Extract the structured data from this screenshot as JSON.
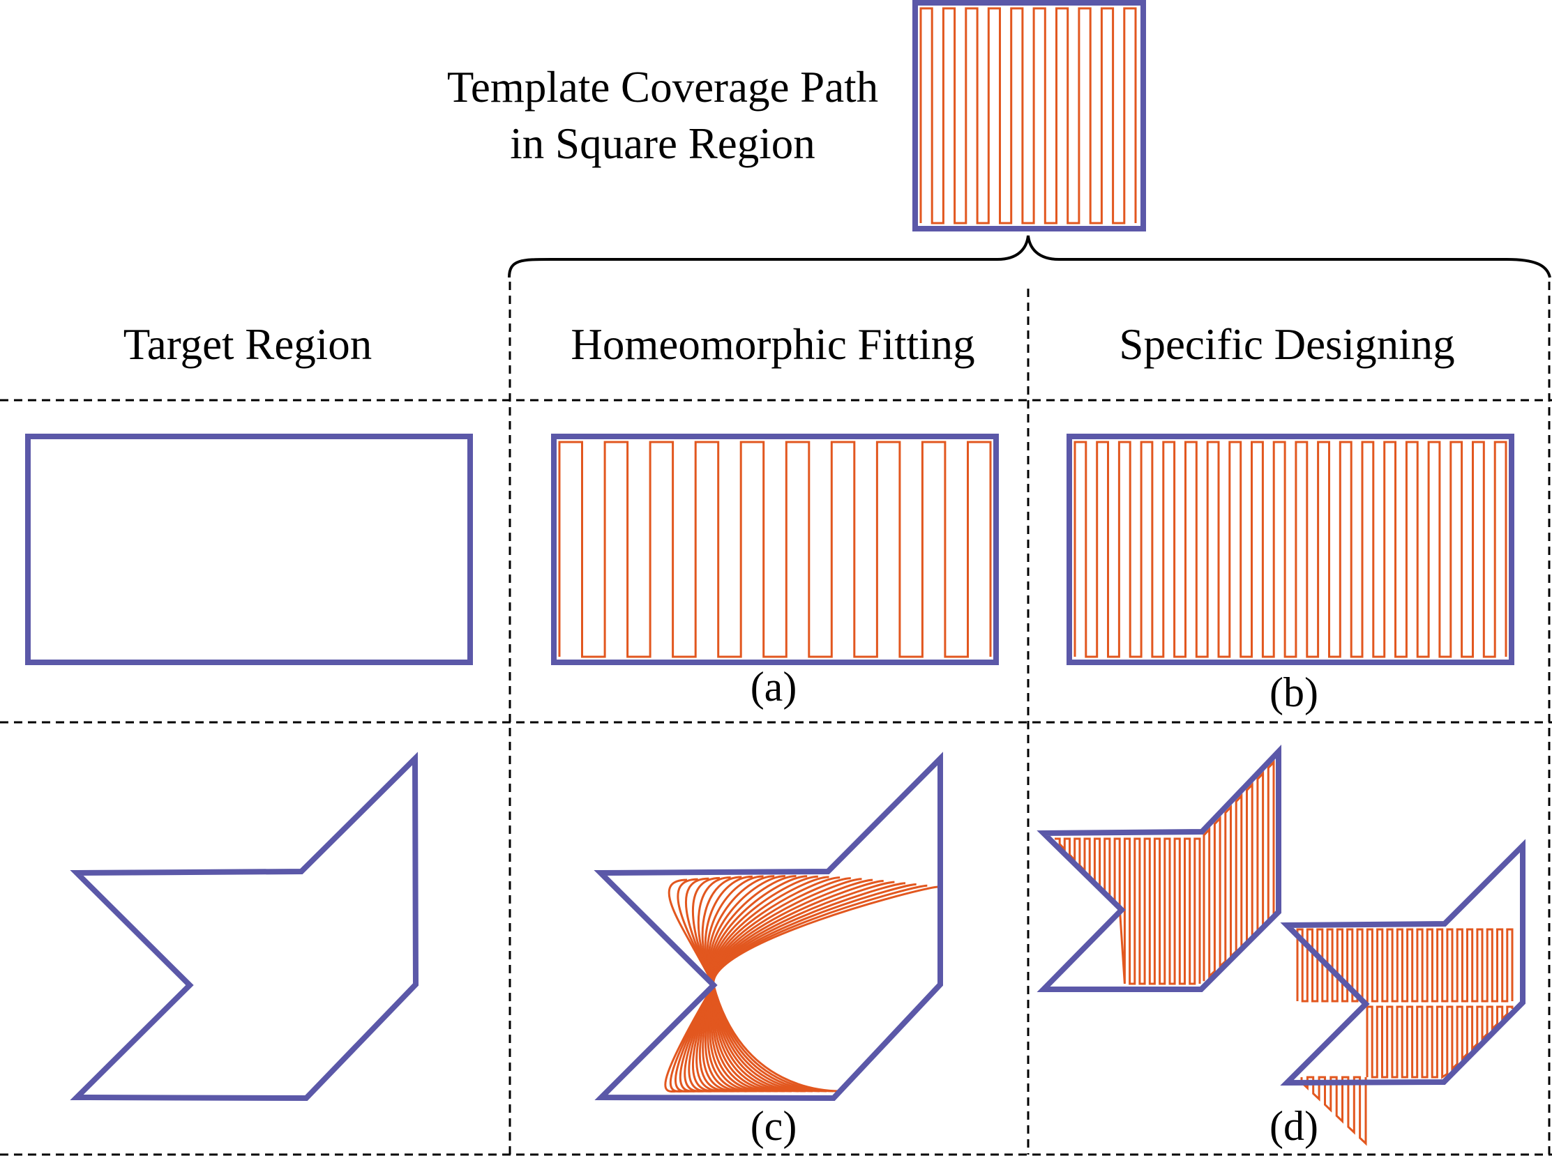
{
  "figure": {
    "template_label_line1": "Template Coverage Path",
    "template_label_line2": "in Square Region",
    "columns": {
      "target": "Target Region",
      "homeomorphic": "Homeomorphic Fitting",
      "specific": "Specific Designing"
    },
    "sublabels": {
      "a": "(a)",
      "b": "(b)",
      "c": "(c)",
      "d": "(d)"
    },
    "colors": {
      "boundary": "#5B58A8",
      "coverage_path": "#E2571F",
      "grid_lines": "#000000"
    }
  }
}
